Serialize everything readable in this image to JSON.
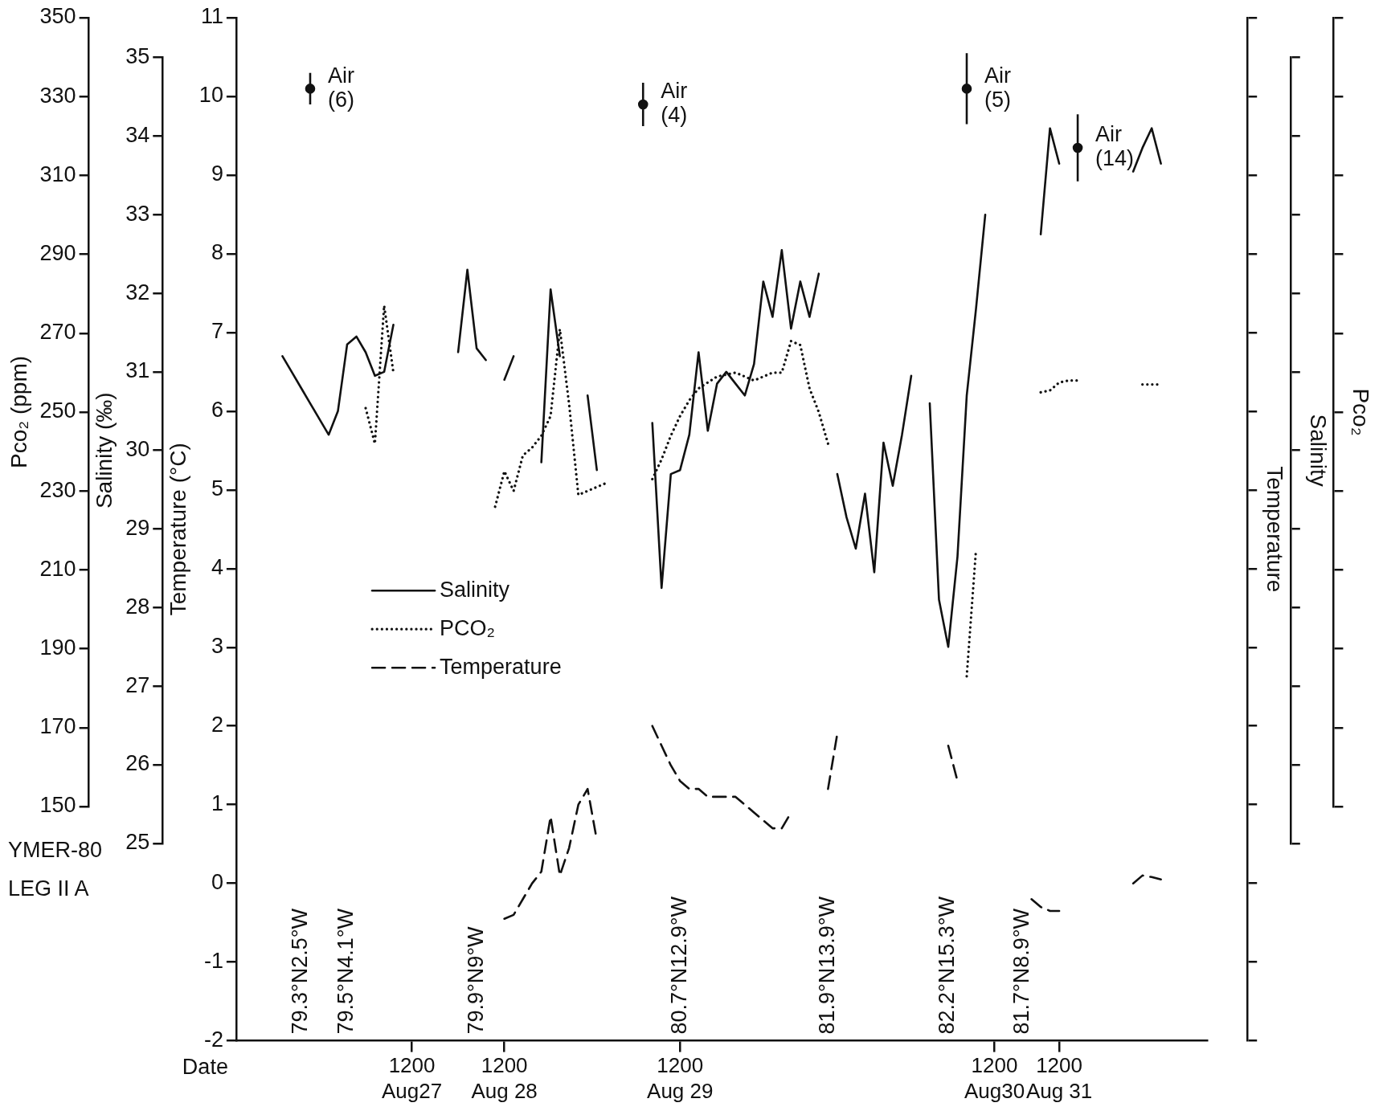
{
  "chart_data": {
    "type": "line",
    "xlabel": "Date",
    "ylabel": "Temperature (°C)",
    "y2label": "Salinity (‰)",
    "y3label": "Pco₂ (ppm)",
    "categories": [
      null,
      null,
      null,
      null,
      null,
      null,
      null,
      null,
      null,
      null,
      null,
      null,
      null,
      null,
      null,
      null,
      null,
      null,
      null,
      "1200\nAug27",
      null,
      null,
      null,
      null,
      null,
      null,
      null,
      null,
      null,
      "1200\nAug 28",
      null,
      null,
      null,
      null,
      null,
      null,
      null,
      null,
      null,
      null,
      null,
      null,
      null,
      null,
      null,
      null,
      null,
      null,
      "1200\nAug 29",
      null,
      null,
      null,
      null,
      null,
      null,
      null,
      null,
      null,
      null,
      null,
      null,
      null,
      null,
      null,
      null,
      null,
      null,
      null,
      null,
      null,
      null,
      null,
      null,
      null,
      null,
      null,
      null,
      null,
      null,
      null,
      null,
      null,
      "1200\nAug30",
      null,
      null,
      null,
      null,
      null,
      null,
      "1200\nAug 31",
      null,
      null,
      null,
      null,
      null,
      null,
      null,
      null,
      null,
      null,
      null,
      null,
      null,
      null,
      null,
      null
    ],
    "ylim": [
      -2,
      11
    ],
    "yticks": [
      -2,
      -1,
      0,
      1,
      2,
      3,
      4,
      5,
      6,
      7,
      8,
      9,
      10,
      11
    ],
    "y2lim": [
      25,
      35
    ],
    "y2ticks": [
      25,
      26,
      27,
      28,
      29,
      30,
      31,
      32,
      33,
      34,
      35
    ],
    "y3lim": [
      150,
      350
    ],
    "y3ticks": [
      150,
      170,
      190,
      210,
      230,
      250,
      270,
      290,
      310,
      330,
      350
    ],
    "legend": "center left",
    "series": [
      {
        "name": "Salinity",
        "axis": "y2",
        "line_style": "solid",
        "color": "#111111",
        "values": [
          null,
          null,
          null,
          null,
          null,
          31.2,
          31.0,
          30.8,
          30.6,
          30.4,
          30.2,
          30.5,
          31.35,
          31.45,
          31.25,
          30.95,
          31.0,
          31.6,
          null,
          null,
          null,
          null,
          null,
          null,
          31.25,
          32.3,
          31.3,
          31.15,
          null,
          30.9,
          31.2,
          null,
          null,
          29.85,
          32.05,
          31.2,
          null,
          null,
          30.7,
          29.75,
          null,
          null,
          null,
          null,
          null,
          30.35,
          28.25,
          29.7,
          29.75,
          30.2,
          31.25,
          30.25,
          30.85,
          31.0,
          30.85,
          30.7,
          31.1,
          32.15,
          31.7,
          32.55,
          31.55,
          32.15,
          31.7,
          32.25,
          null,
          29.7,
          29.15,
          28.75,
          29.45,
          28.45,
          30.1,
          29.55,
          30.2,
          30.95,
          null,
          30.6,
          28.1,
          27.5,
          28.65,
          30.7,
          31.8,
          33.0,
          null,
          null,
          null,
          null,
          null,
          32.75,
          34.1,
          33.65,
          null,
          null,
          null,
          null,
          null,
          null,
          null,
          33.55,
          33.85,
          34.1,
          33.65,
          null,
          null,
          null,
          null,
          null
        ]
      },
      {
        "name": "PCO₂",
        "axis": "y3",
        "line_style": "dotted",
        "color": "#111111",
        "values": [
          null,
          null,
          null,
          null,
          null,
          null,
          null,
          null,
          null,
          null,
          null,
          null,
          null,
          null,
          251,
          242,
          277,
          260,
          null,
          null,
          null,
          null,
          null,
          null,
          null,
          null,
          null,
          null,
          226,
          235,
          230,
          239,
          241,
          244,
          249,
          271,
          252,
          229,
          230,
          231,
          232,
          null,
          null,
          null,
          null,
          233,
          238,
          244,
          249,
          253,
          256,
          257.5,
          259,
          259.5,
          260,
          259,
          258,
          259,
          260,
          260,
          268,
          267,
          256,
          250,
          242,
          null,
          null,
          null,
          null,
          null,
          null,
          null,
          null,
          null,
          null,
          null,
          null,
          null,
          null,
          183,
          215,
          null,
          null,
          null,
          null,
          null,
          null,
          255,
          255.5,
          257.5,
          258,
          258,
          null,
          null,
          null,
          null,
          null,
          null,
          257,
          257,
          257,
          null,
          null,
          null,
          null,
          null
        ]
      },
      {
        "name": "Temperature",
        "axis": "y",
        "line_style": "dashed",
        "color": "#111111",
        "values": [
          null,
          null,
          null,
          null,
          null,
          null,
          null,
          null,
          null,
          null,
          null,
          null,
          null,
          null,
          null,
          null,
          null,
          null,
          null,
          null,
          null,
          null,
          null,
          null,
          null,
          null,
          null,
          null,
          null,
          -0.45,
          -0.4,
          -0.2,
          0.0,
          0.15,
          0.85,
          0.1,
          0.45,
          1.0,
          1.2,
          0.55,
          null,
          null,
          null,
          null,
          null,
          2.0,
          1.75,
          1.5,
          1.3,
          1.2,
          1.2,
          1.1,
          1.1,
          1.1,
          1.1,
          1.0,
          0.9,
          0.8,
          0.7,
          0.7,
          0.9,
          null,
          null,
          null,
          1.2,
          1.9,
          null,
          null,
          null,
          null,
          null,
          null,
          null,
          null,
          null,
          null,
          null,
          1.75,
          1.3,
          null,
          null,
          null,
          null,
          null,
          null,
          null,
          -0.2,
          -0.3,
          -0.35,
          -0.35,
          null,
          null,
          null,
          null,
          null,
          null,
          null,
          0.0,
          0.1,
          0.08,
          0.05,
          null,
          null,
          null,
          null,
          null
        ]
      },
      {
        "type": "scatter",
        "axis": "y3",
        "marker": "circle",
        "color": "#111111",
        "values": [
          null,
          null,
          null,
          null,
          null,
          null,
          null,
          null,
          332,
          null,
          null,
          null,
          null,
          null,
          null,
          null,
          null,
          null,
          null,
          null,
          null,
          null,
          null,
          null,
          null,
          null,
          null,
          null,
          null,
          null,
          null,
          null,
          null,
          null,
          null,
          null,
          null,
          null,
          null,
          null,
          null,
          null,
          null,
          null,
          328,
          null,
          null,
          null,
          null,
          null,
          null,
          null,
          null,
          null,
          null,
          null,
          null,
          null,
          null,
          null,
          null,
          null,
          null,
          null,
          null,
          null,
          null,
          null,
          null,
          null,
          null,
          null,
          null,
          null,
          null,
          null,
          null,
          null,
          null,
          332,
          null,
          null,
          null,
          null,
          null,
          null,
          null,
          null,
          null,
          null,
          null,
          317,
          null,
          null,
          null,
          null,
          null,
          null,
          null,
          null,
          null,
          null,
          null,
          null,
          null,
          null
        ],
        "errors": [
          null,
          null,
          null,
          null,
          null,
          null,
          null,
          null,
          4,
          null,
          null,
          null,
          null,
          null,
          null,
          null,
          null,
          null,
          null,
          null,
          null,
          null,
          null,
          null,
          null,
          null,
          null,
          null,
          null,
          null,
          null,
          null,
          null,
          null,
          null,
          null,
          null,
          null,
          null,
          null,
          null,
          null,
          null,
          null,
          5.5,
          null,
          null,
          null,
          null,
          null,
          null,
          null,
          null,
          null,
          null,
          null,
          null,
          null,
          null,
          null,
          null,
          null,
          null,
          null,
          null,
          null,
          null,
          null,
          null,
          null,
          null,
          null,
          null,
          null,
          null,
          null,
          null,
          null,
          null,
          9,
          null,
          null,
          null,
          null,
          null,
          null,
          null,
          null,
          null,
          null,
          null,
          8.5,
          null,
          null,
          null,
          null,
          null,
          null,
          null,
          null,
          null,
          null,
          null,
          null,
          null,
          null
        ]
      }
    ],
    "annotations": [
      "Air\n(6)",
      "Air\n(4)",
      "Air\n(5)",
      "Air\n(14)",
      "YMER-80",
      "LEG II A",
      "79.3°N2.5°W",
      "79.5°N4.1°W",
      "79.9°N9°W",
      "80.7°N12.9°W",
      "81.9°N13.9°W",
      "82.2°N15.3°W",
      "81.7°N8.9°W",
      "Temperature",
      "Salinity",
      "Pco₂"
    ]
  }
}
